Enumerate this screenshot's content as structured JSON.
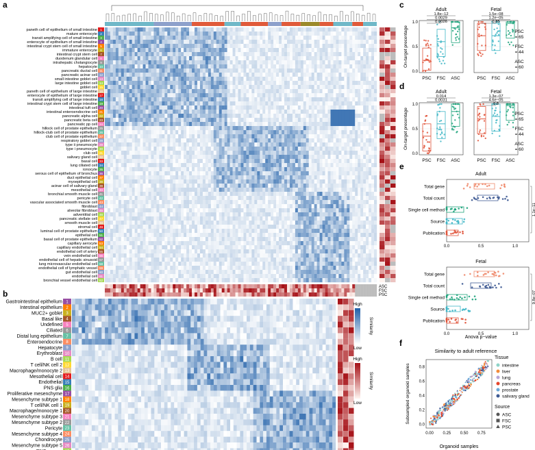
{
  "panel_letters": {
    "a": "a",
    "b": "b",
    "c": "c",
    "d": "d",
    "e": "e",
    "f": "f"
  },
  "colors": {
    "heat_low": "#ffffff",
    "heat_high": "#1f5fa8",
    "red_low": "#fff5f0",
    "red_high": "#a50f15",
    "psc": "#e0533a",
    "fsc": "#3fb6c6",
    "asc": "#1ea37c",
    "gray": "#bdbdbd"
  },
  "chart_data": [
    {
      "panel": "a",
      "type": "heatmap",
      "rows": [
        "paneth cell of epithelium of small intestine",
        "mature enterocyte",
        "transit amplifying cell of small intestine",
        "enterocyte of epithelium of small intestine",
        "intestinal crypt stem cell of small intestine",
        "immature enterocyte",
        "intestinal crypt stem cell",
        "duodenum glandular cell",
        "intrahepatic cholangiocyte",
        "hepatocyte",
        "pancreatic ductal cell",
        "pancreatic acinar cell",
        "small intestine goblet cell",
        "large intestine goblet cell",
        "goblet cell",
        "paneth cell of epithelium of large intestine",
        "enterocyte of epithelium of large intestine",
        "transit amplifying cell of large intestine",
        "intestinal crypt stem cell of large intestine",
        "intestinal tuft cell",
        "intestinal enteroendocrine cell",
        "pancreatic alpha cell",
        "pancreatic beta cell",
        "pancreatic pp cell",
        "hillock cell of prostate epithelium",
        "hillock-club cell of prostate epithelium",
        "club cell of prostate epithelium",
        "respiratory goblet cell",
        "type ii pneumocyte",
        "type i pneumocyte",
        "club cell",
        "salivary gland cell",
        "basal cell",
        "lung ciliated cell",
        "ionocyte",
        "serous cell of epithelium of bronchus",
        "duct epithelial cell",
        "myoepithelial cell",
        "acinar cell of salivary gland",
        "mesothelial cell",
        "bronchial smooth muscle cell",
        "pericyte cell",
        "vascular associated smooth muscle cell",
        "fibroblast",
        "alveolar fibroblast",
        "adventitial cell",
        "pancreatic stellate cell",
        "smooth muscle cell",
        "stromal cell",
        "luminal cell of prostate epithelium",
        "epithelial cell",
        "basal cell of prostate epithelium",
        "capillary aerocyte",
        "capillary endothelial cell",
        "endothelial cell of artery",
        "vein endothelial cell",
        "endothelial cell of hepatic sinusoid",
        "lung microvascular endothelial cell",
        "endothelial cell of lymphatic vessel",
        "gut endothelial cell",
        "endothelial cell",
        "bronchial vessel endothelial cell"
      ],
      "annotation_labels": [
        "ASC",
        "FSC",
        "PSC"
      ]
    },
    {
      "panel": "b",
      "type": "heatmap",
      "rows": [
        "Gastrointestinal epithelium",
        "Intestinal epithelium",
        "MUC2+ goblet",
        "Basal like",
        "Undefined",
        "Ciliated",
        "Distal lung epithelium",
        "Enteroendocrine",
        "Hepatocyte",
        "Erythroblast",
        "B cell",
        "T cell/NK cell 2",
        "Macrophage/monocyte 2",
        "Mesothelial cell",
        "Endothelial",
        "PNS glia",
        "Proliferative mesenchyme",
        "Mesenchyme subtype 1",
        "T cell/NK cell 1",
        "Macrophage/monocyte 1",
        "Mesenchyme subtype 3",
        "Mesenchyme subtype 2",
        "Pericyte",
        "Mesenchyme subtype 4",
        "Chondrocyte",
        "Mesenchyme subtype 5",
        "PNS neuron"
      ],
      "row_numbers": [
        "1",
        "2",
        "3",
        "4",
        "5",
        "6",
        "7",
        "8",
        "9",
        "10",
        "11",
        "12",
        "13",
        "14",
        "15",
        "16",
        "17",
        "18",
        "19",
        "20",
        "21",
        "22",
        "23",
        "24",
        "25",
        "26",
        "27"
      ],
      "annotation_labels": [
        "ASC",
        "FSC",
        "PSC"
      ],
      "legend": {
        "title": "Similarity",
        "high": "High",
        "low": "Low"
      }
    },
    {
      "panel": "c",
      "type": "box",
      "ylabel": "On-target precentage",
      "yticks": [
        "0.0",
        "0.5",
        "1.0"
      ],
      "ylim": [
        0,
        1
      ],
      "categories": [
        "PSC",
        "FSC",
        "ASC"
      ],
      "facets": [
        {
          "title": "Adult",
          "pvalues": [
            "1.8e−12",
            "0.0029",
            "0.0026"
          ],
          "medians": [
            0.22,
            0.6,
            0.88
          ]
        },
        {
          "title": "Fetal",
          "pvalues": [
            "1.5e−08",
            "1.2e−05",
            "0.85"
          ],
          "medians": [
            0.72,
            0.72,
            0.97
          ]
        }
      ],
      "counts": [
        "PSC\n= 65",
        "FSC\n= 44",
        "ASC\n= 60"
      ]
    },
    {
      "panel": "d",
      "type": "box",
      "ylabel": "On-target precentage",
      "yticks": [
        "0.0",
        "0.5",
        "1.0"
      ],
      "ylim": [
        0,
        1
      ],
      "categories": [
        "PSC",
        "FSC",
        "ASC"
      ],
      "facets": [
        {
          "title": "Adult",
          "pvalues": [
            "0.014",
            "0.0031"
          ],
          "medians": [
            0.35,
            0.6,
            0.85
          ]
        },
        {
          "title": "Fetal",
          "pvalues": [
            "1.3e−07",
            "4.6e−05",
            "0.8"
          ],
          "medians": [
            0.7,
            0.75,
            0.97
          ]
        }
      ],
      "counts": [
        "PSC\n= 65",
        "FSC\n= 44",
        "ASC\n= 60"
      ]
    },
    {
      "panel": "e",
      "type": "box",
      "xlabel": "Anova p−value",
      "xticks": [
        "0.0",
        "0.5",
        "1.0"
      ],
      "xlim": [
        0,
        1
      ],
      "categories": [
        "Total gene",
        "Total count",
        "Single cell method",
        "Source",
        "Publication"
      ],
      "facets": [
        {
          "title": "Adult",
          "pvalues": [
            "1.1e−11",
            "2.4e−11",
            "4.3e−11",
            "0.00054"
          ],
          "medians": [
            0.55,
            0.6,
            0.1,
            0.08,
            0.02
          ]
        },
        {
          "title": "Fetal",
          "pvalues": [
            "9.8e−07",
            "1.6e−05",
            "0.004",
            "0.03"
          ],
          "medians": [
            0.55,
            0.5,
            0.15,
            0.05,
            0.02
          ]
        }
      ]
    },
    {
      "panel": "f",
      "type": "scatter",
      "title": "Similarity to adult reference",
      "xlabel": "Organoid samples",
      "ylabel": "Subsampled organoid samples",
      "xticks": [
        "0.00",
        "0.25",
        "0.50",
        "0.75"
      ],
      "yticks": [
        "0.0",
        "0.2",
        "0.4",
        "0.6",
        "0.8"
      ],
      "xlim": [
        -0.05,
        0.9
      ],
      "ylim": [
        -0.05,
        0.9
      ],
      "legend": {
        "tissue_title": "Tissue",
        "tissues": [
          {
            "name": "intestine",
            "color": "#8fd3c8"
          },
          {
            "name": "liver",
            "color": "#f28c3a"
          },
          {
            "name": "lung",
            "color": "#b7a6d6"
          },
          {
            "name": "pancreas",
            "color": "#e6452a"
          },
          {
            "name": "prostate",
            "color": "#6ba8d8"
          },
          {
            "name": "salivary gland",
            "color": "#3e5a93"
          }
        ],
        "source_title": "Source",
        "sources": [
          {
            "name": "ASC",
            "shape": "circle"
          },
          {
            "name": "FSC",
            "shape": "square"
          },
          {
            "name": "PSC",
            "shape": "triangle"
          }
        ]
      }
    }
  ]
}
